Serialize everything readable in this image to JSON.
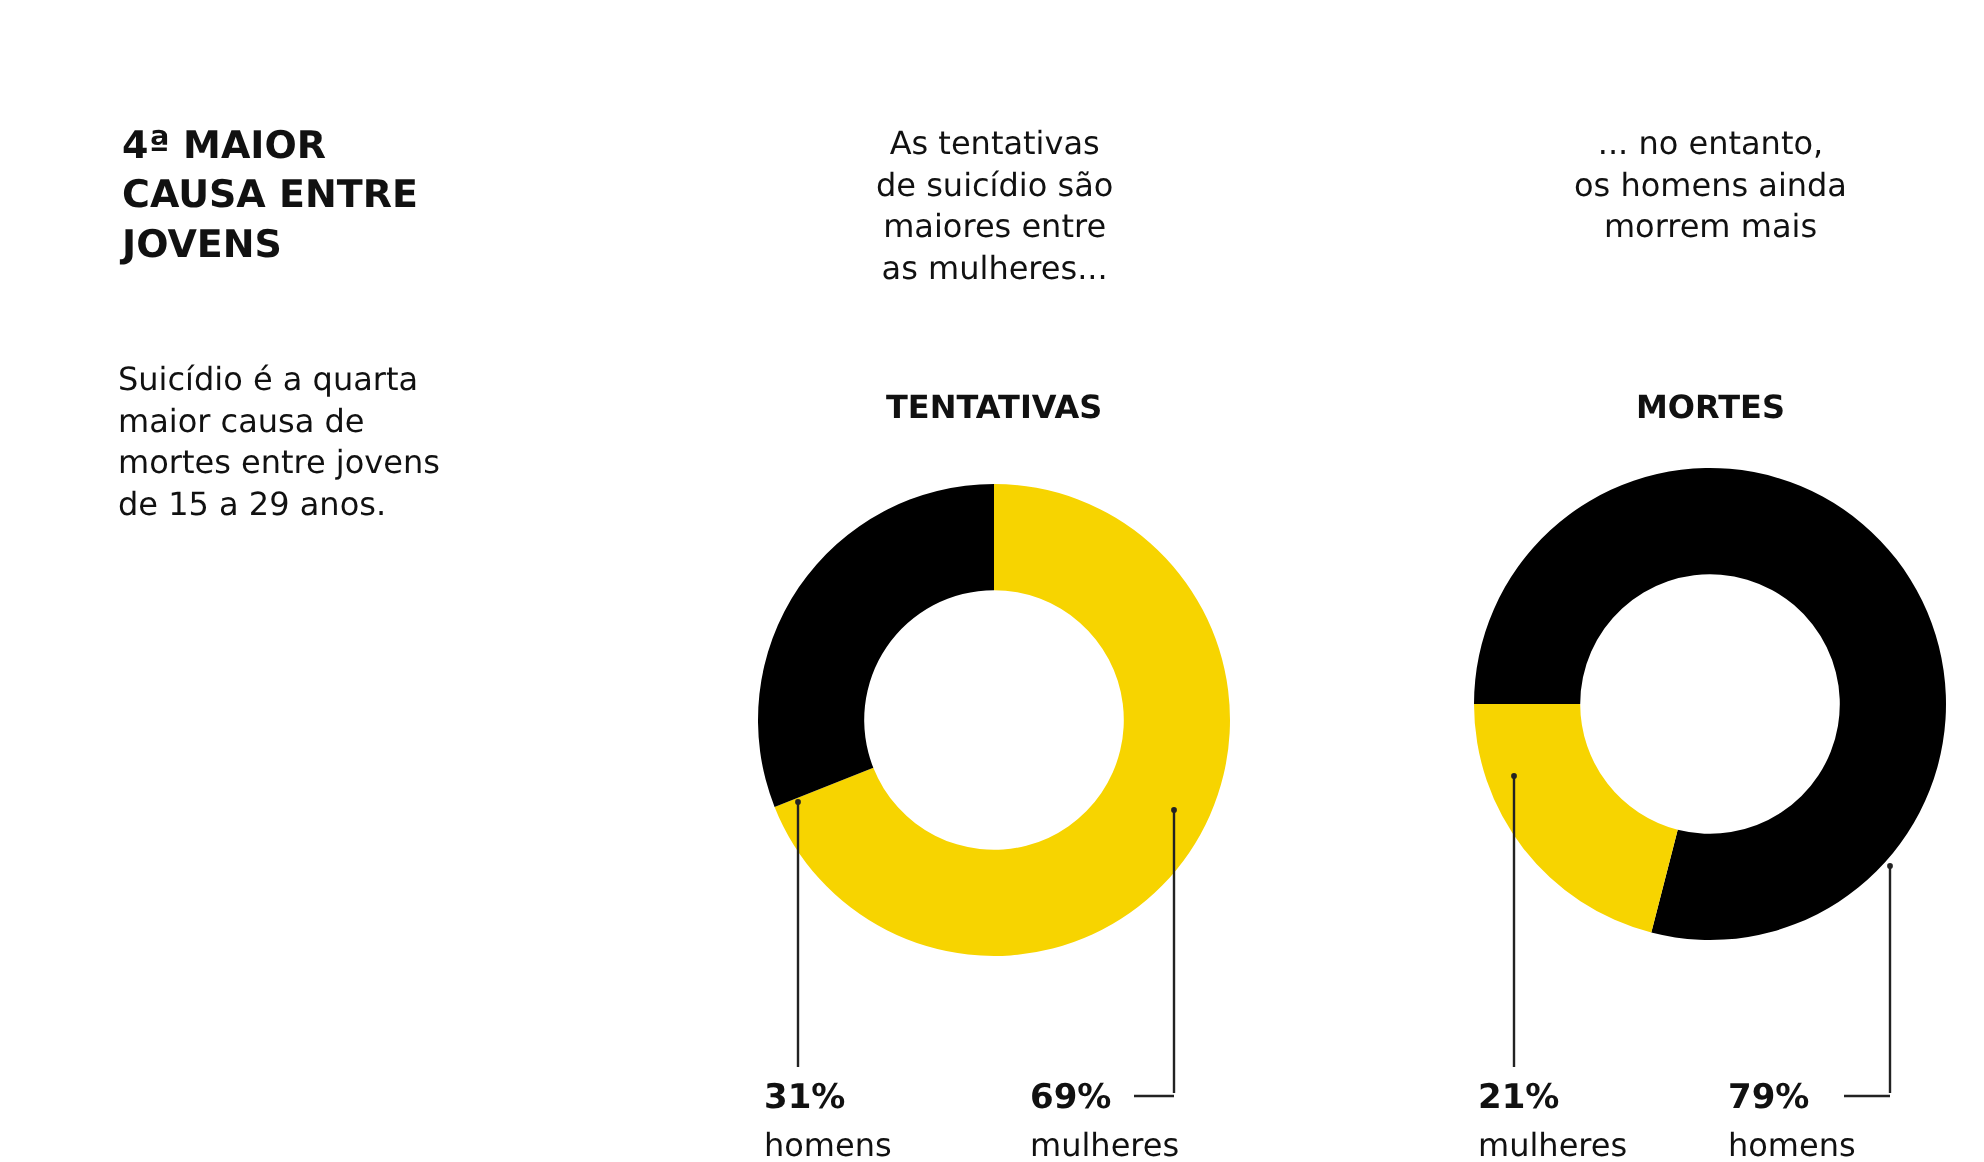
{
  "chart_data": [
    {
      "type": "other",
      "title": "4ª MAIOR\nCAUSA ENTRE\nJOVENS",
      "subtitle": "Suicídio é a quarta\nmaior causa de\nmortes entre jovens\nde 15 a 29 anos."
    },
    {
      "type": "donut",
      "subtitle": "As tentativas\nde suicídio são\nmaiores entre\nas mulheres...",
      "title": "TENTATIVAS",
      "categories": [
        "mulheres",
        "homens"
      ],
      "values": [
        69,
        31
      ],
      "colors": [
        "#f7d400",
        "#000000"
      ],
      "value_labels": [
        "69%",
        "31%"
      ]
    },
    {
      "type": "donut",
      "subtitle": "... no entanto,\nos homens ainda\nmorrem mais",
      "title": "MORTES",
      "categories": [
        "homens",
        "mulheres"
      ],
      "values": [
        79,
        21
      ],
      "colors": [
        "#000000",
        "#f7d400"
      ],
      "value_labels": [
        "79%",
        "21%"
      ]
    }
  ]
}
